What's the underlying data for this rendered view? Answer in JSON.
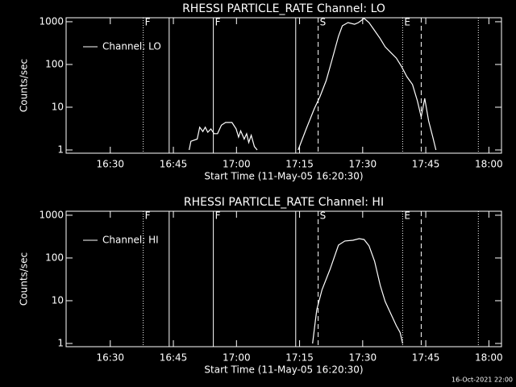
{
  "chart_data": [
    {
      "type": "line",
      "title": "RHESSI PARTICLE_RATE Channel: LO",
      "xlabel": "Start Time (11-May-05 16:20:30)",
      "ylabel": "Counts/sec",
      "xlim": [
        "16:19:30",
        "18:03"
      ],
      "xticks": [
        "16:30",
        "16:45",
        "17:00",
        "17:15",
        "17:30",
        "17:45",
        "18:00"
      ],
      "ylim": [
        0.84,
        1240
      ],
      "yticks": [
        1,
        10,
        100,
        1000
      ],
      "log_y": true,
      "legend": "upper left",
      "series": [
        {
          "name": "Channel: LO",
          "color": "#ffffff",
          "x": [
            "16:48:45",
            "16:49:10",
            "16:50:40",
            "16:51:15",
            "16:52:00",
            "16:52:35",
            "16:53:10",
            "16:53:55",
            "16:54:40",
            "16:55:30",
            "16:56:25",
            "16:57:25",
            "16:58:55",
            "16:59:55",
            "17:00:30",
            "17:01:00",
            "17:01:50",
            "17:02:25",
            "17:02:55",
            "17:03:30",
            "17:04:15",
            "17:04:55",
            null,
            "17:14:40",
            "17:16:35",
            "17:18:30",
            "17:19:50",
            "17:21:20",
            "17:22:40",
            "17:24:15",
            "17:25:10",
            "17:26:30",
            "17:28:05",
            "17:29:00",
            "17:30:20",
            "17:31:30",
            "17:32:50",
            "17:34:10",
            "17:35:20",
            "17:36:40",
            "17:38:00",
            "17:39:10",
            "17:40:30",
            "17:41:50",
            "17:43:00",
            "17:43:55",
            "17:44:45",
            "17:45:40",
            "17:46:40",
            "17:47:25"
          ],
          "values": [
            1,
            1.6,
            1.8,
            3.4,
            2.7,
            3.4,
            2.6,
            3.1,
            2.4,
            2.4,
            3.8,
            4.4,
            4.4,
            3.1,
            2,
            2.8,
            1.8,
            2.4,
            1.5,
            2.2,
            1.2,
            1,
            null,
            1,
            3.1,
            9.2,
            17.6,
            42,
            124,
            457,
            804,
            954,
            873,
            954,
            1200,
            954,
            621,
            402,
            260,
            191,
            141,
            92,
            52,
            34,
            14.1,
            5.9,
            16.1,
            4.8,
            2,
            1
          ]
        }
      ],
      "markers": [
        {
          "x": "16:37:50",
          "style": "dotted",
          "label": "F"
        },
        {
          "x": "16:44:00",
          "style": "solid"
        },
        {
          "x": "16:54:30",
          "style": "solid",
          "label": "F"
        },
        {
          "x": "17:14:05",
          "style": "solid"
        },
        {
          "x": "17:19:25",
          "style": "dashed",
          "label": "S"
        },
        {
          "x": "17:39:30",
          "style": "dotted",
          "label": "E"
        },
        {
          "x": "17:43:55",
          "style": "dashed"
        },
        {
          "x": "17:57:30",
          "style": "dotted"
        }
      ]
    },
    {
      "type": "line",
      "title": "RHESSI PARTICLE_RATE Channel: HI",
      "xlabel": "Start Time (11-May-05 16:20:30)",
      "ylabel": "Counts/sec",
      "xlim": [
        "16:19:30",
        "18:03"
      ],
      "xticks": [
        "16:30",
        "16:45",
        "17:00",
        "17:15",
        "17:30",
        "17:45",
        "18:00"
      ],
      "ylim": [
        0.84,
        1240
      ],
      "yticks": [
        1,
        10,
        100,
        1000
      ],
      "log_y": true,
      "legend": "upper left",
      "series": [
        {
          "name": "Channel: HI",
          "color": "#ffffff",
          "x": [
            "17:18:05",
            "17:19:05",
            "17:20:20",
            "17:22:15",
            "17:24:15",
            "17:25:45",
            "17:27:40",
            "17:29:10",
            "17:30:20",
            "17:31:30",
            "17:32:50",
            "17:34:10",
            "17:35:20",
            "17:36:40",
            "17:38:00",
            "17:38:55",
            "17:39:30"
          ],
          "values": [
            1,
            6.2,
            18,
            54.5,
            200,
            250,
            260,
            283,
            270,
            192,
            84,
            22.9,
            9.6,
            5,
            2.6,
            1.8,
            1
          ]
        }
      ],
      "markers": [
        {
          "x": "16:37:50",
          "style": "dotted",
          "label": "F"
        },
        {
          "x": "16:44:00",
          "style": "solid"
        },
        {
          "x": "16:54:30",
          "style": "solid",
          "label": "F"
        },
        {
          "x": "17:14:05",
          "style": "solid"
        },
        {
          "x": "17:19:25",
          "style": "dashed",
          "label": "S"
        },
        {
          "x": "17:39:30",
          "style": "dotted",
          "label": "E"
        },
        {
          "x": "17:43:55",
          "style": "dashed"
        },
        {
          "x": "17:57:30",
          "style": "dotted"
        }
      ]
    }
  ],
  "footer": "16-Oct-2021 22:00"
}
